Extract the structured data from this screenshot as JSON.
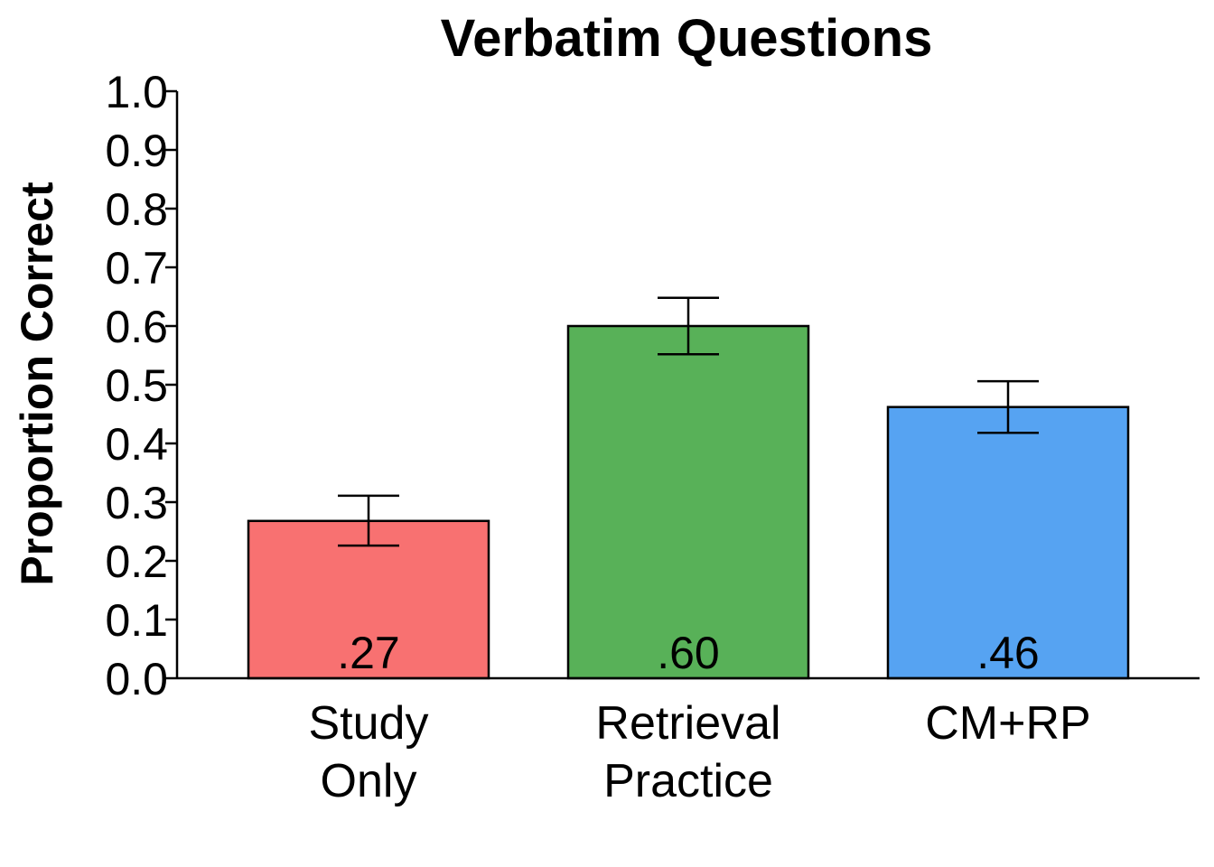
{
  "chart_data": {
    "type": "bar",
    "title": "Verbatim Questions",
    "xlabel": "",
    "ylabel": "Proportion Correct",
    "ylim": [
      0.0,
      1.0
    ],
    "yticks": [
      "0.0",
      "0.1",
      "0.2",
      "0.3",
      "0.4",
      "0.5",
      "0.6",
      "0.7",
      "0.8",
      "0.9",
      "1.0"
    ],
    "categories": [
      [
        "Study",
        "Only"
      ],
      [
        "Retrieval",
        "Practice"
      ],
      [
        "CM+RP"
      ]
    ],
    "values": [
      0.268,
      0.6,
      0.462
    ],
    "value_labels": [
      ".27",
      ".60",
      ".46"
    ],
    "error_low": [
      0.226,
      0.552,
      0.418
    ],
    "error_high": [
      0.311,
      0.648,
      0.506
    ],
    "colors": [
      "#F87171",
      "#58B158",
      "#56A3F2"
    ],
    "grid": false,
    "legend": "none"
  }
}
